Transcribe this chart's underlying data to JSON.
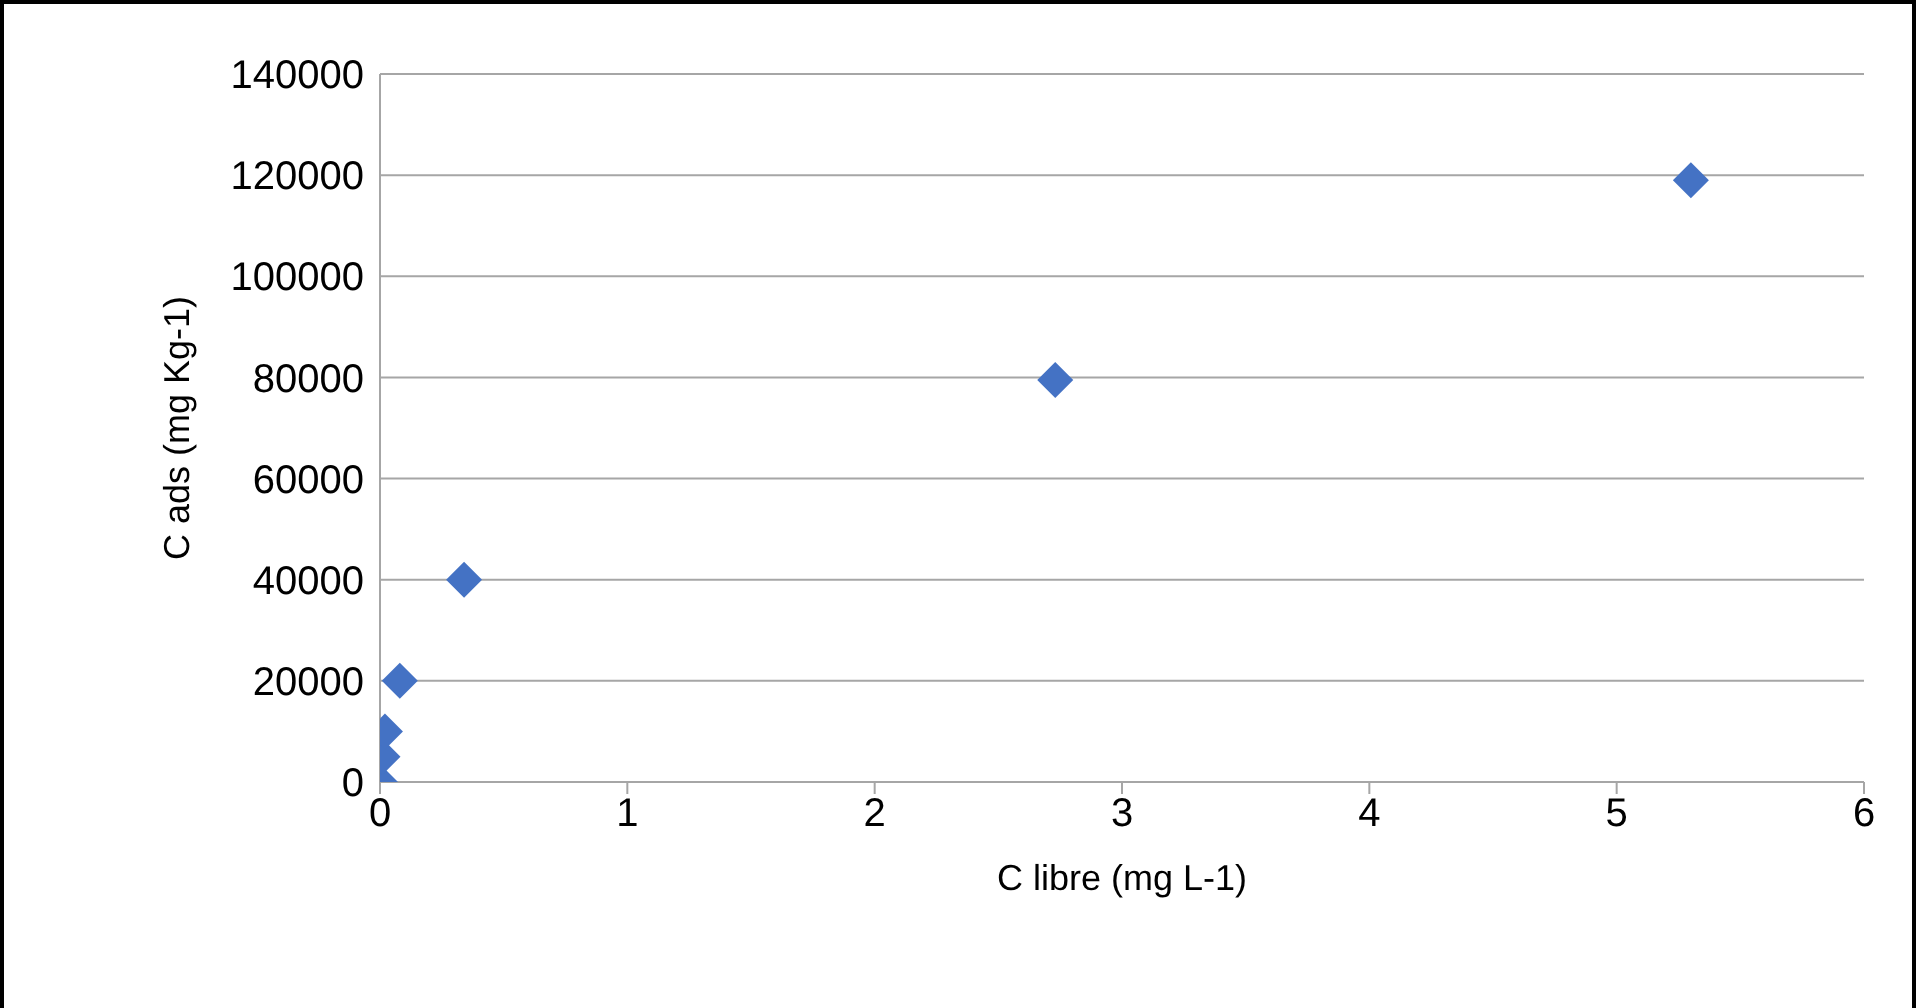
{
  "chart_data": {
    "type": "scatter",
    "xlabel": "C libre (mg L-1)",
    "ylabel": "C ads (mg Kg-1)",
    "x": [
      0,
      0.01,
      0.02,
      0.08,
      0.34,
      2.73,
      5.3
    ],
    "series": [
      {
        "color": "#4472c4",
        "values": [
          0,
          5000,
          10000,
          20000,
          40000,
          79500,
          119000
        ]
      }
    ],
    "xlim": [
      0,
      6
    ],
    "xticks": [
      0,
      1,
      2,
      3,
      4,
      5,
      6
    ],
    "ylim": [
      0,
      140000
    ],
    "yticks": [
      0,
      20000,
      40000,
      60000,
      80000,
      100000,
      120000,
      140000
    ],
    "grid": "y",
    "marker": "diamond"
  }
}
